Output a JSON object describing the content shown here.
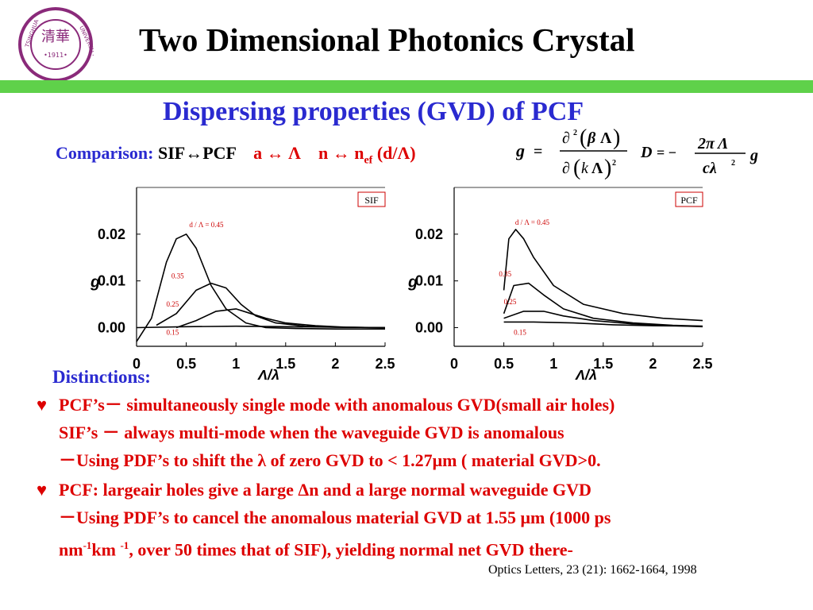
{
  "slide": {
    "title": "Two Dimensional Photonics Crystal",
    "subtitle": "Dispersing properties (GVD) of PCF",
    "comparison": {
      "label": "Comparison:",
      "pair_left": "SIF",
      "arrow": "↔",
      "pair_right": "PCF",
      "mapping_1_left": "a",
      "mapping_1_right": "Λ",
      "mapping_2_left": "n",
      "mapping_2_right": "n",
      "mapping_2_sub": "ef",
      "mapping_2_tail": "(d/Λ)"
    },
    "distinctions_heading": "Distinctions:",
    "bullets": [
      {
        "marker": "♥",
        "lines": [
          "PCF’s－ simultaneously single mode with anomalous GVD(small air holes)",
          "SIF’s － always multi-mode when the waveguide GVD is anomalous",
          "－Using PDF’s to shift the λ of zero GVD to < 1.27μm ( material GVD>0."
        ]
      },
      {
        "marker": "♥",
        "lines": [
          "PCF: largeair holes  give a large Δn and a large  normal waveguide GVD",
          "－Using PDF’s to cancel the anomalous material GVD at 1.55 μm (1000 ps"
        ],
        "last_line": {
          "p1": "nm",
          "sup1": "-1",
          "p2": "km ",
          "sup2": "-1",
          "p3": ", over 50 times that of  SIF), yielding normal net GVD there-"
        }
      }
    ],
    "citation": "Optics Letters, 23 (21): 1662-1664, 1998",
    "colors": {
      "title": "#000000",
      "accent_blue": "#2a2ad0",
      "accent_red": "#dd0000",
      "bar_green": "#5fd14a"
    }
  },
  "formulas": {
    "g_symbol": "g",
    "eq": "=",
    "num_partial": "∂",
    "num_power": "2",
    "num_beta": "β",
    "num_lambda": "Λ",
    "den_partial": "∂",
    "den_k": "k",
    "den_lambda": "Λ",
    "den_power": "2",
    "d_symbol": "D",
    "d_eq": "= −",
    "d_num": "2π Λ",
    "d_den": "cλ",
    "d_den_power": "2",
    "d_g": "g"
  },
  "chart_data": [
    {
      "type": "line",
      "box_label": "SIF",
      "xlabel": "Λ/λ",
      "ylabel": "g",
      "xlim": [
        0,
        2.5
      ],
      "ylim": [
        -0.004,
        0.03
      ],
      "x_ticks": [
        "0",
        "0.5",
        "1",
        "1.5",
        "2",
        "2.5"
      ],
      "y_ticks": [
        "0.02",
        "0.01",
        "0.00"
      ],
      "series": [
        {
          "name": "d / Λ = 0.45",
          "x": [
            0,
            0.15,
            0.3,
            0.4,
            0.5,
            0.6,
            0.75,
            0.9,
            1.1,
            1.3,
            1.6,
            2.0,
            2.5
          ],
          "y": [
            -0.003,
            0.002,
            0.014,
            0.019,
            0.02,
            0.017,
            0.009,
            0.004,
            0.001,
            0.0,
            -0.0002,
            -0.0003,
            -0.0003
          ]
        },
        {
          "name": "0.35",
          "x": [
            0.2,
            0.4,
            0.6,
            0.75,
            0.9,
            1.05,
            1.2,
            1.4,
            1.7,
            2.0,
            2.5
          ],
          "y": [
            0.0005,
            0.003,
            0.008,
            0.0095,
            0.0085,
            0.005,
            0.0025,
            0.001,
            0.0003,
            0.0001,
            0.0
          ]
        },
        {
          "name": "0.25",
          "x": [
            0.4,
            0.6,
            0.8,
            1.0,
            1.15,
            1.3,
            1.5,
            1.8,
            2.1,
            2.5
          ],
          "y": [
            0.0,
            0.0015,
            0.0035,
            0.004,
            0.003,
            0.002,
            0.001,
            0.0004,
            0.0001,
            0.0
          ]
        },
        {
          "name": "0.15",
          "x": [
            0,
            0.5,
            1.0,
            1.5,
            2.0,
            2.5
          ],
          "y": [
            0.0,
            0.0002,
            0.0003,
            0.0002,
            0.0001,
            0.0
          ]
        }
      ],
      "grid": false
    },
    {
      "type": "line",
      "box_label": "PCF",
      "xlabel": "Λ/λ",
      "ylabel": "g",
      "xlim": [
        0,
        2.5
      ],
      "ylim": [
        -0.004,
        0.03
      ],
      "x_ticks": [
        "0",
        "0.5",
        "1",
        "1.5",
        "2",
        "2.5"
      ],
      "y_ticks": [
        "0.02",
        "0.01",
        "0.00"
      ],
      "series": [
        {
          "name": "d / Λ = 0.45",
          "x": [
            0.5,
            0.55,
            0.62,
            0.7,
            0.8,
            1.0,
            1.3,
            1.7,
            2.1,
            2.5
          ],
          "y": [
            0.008,
            0.019,
            0.021,
            0.019,
            0.015,
            0.009,
            0.005,
            0.003,
            0.002,
            0.0015
          ]
        },
        {
          "name": "0.35",
          "x": [
            0.5,
            0.6,
            0.75,
            0.9,
            1.1,
            1.4,
            1.8,
            2.2,
            2.5
          ],
          "y": [
            0.003,
            0.009,
            0.0095,
            0.007,
            0.004,
            0.002,
            0.001,
            0.0005,
            0.0003
          ]
        },
        {
          "name": "0.25",
          "x": [
            0.5,
            0.7,
            0.9,
            1.1,
            1.4,
            1.8,
            2.2,
            2.5
          ],
          "y": [
            0.002,
            0.0035,
            0.0035,
            0.0025,
            0.0015,
            0.0008,
            0.0004,
            0.0002
          ]
        },
        {
          "name": "0.15",
          "x": [
            0.5,
            0.8,
            1.2,
            1.6,
            2.0,
            2.5
          ],
          "y": [
            0.0012,
            0.0012,
            0.001,
            0.0006,
            0.0004,
            0.0003
          ]
        }
      ],
      "grid": false
    }
  ]
}
